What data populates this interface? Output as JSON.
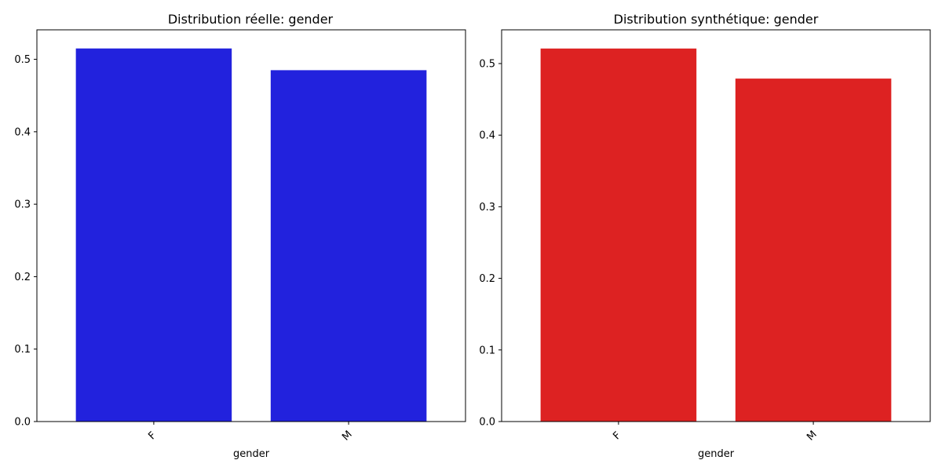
{
  "chart_data": [
    {
      "type": "bar",
      "title": "Distribution réelle: gender",
      "xlabel": "gender",
      "ylabel": "",
      "categories": [
        "F",
        "M"
      ],
      "values": [
        0.515,
        0.485
      ],
      "ylim": [
        0,
        0.5407
      ],
      "yticks": [
        "0.0",
        "0.1",
        "0.2",
        "0.3",
        "0.4",
        "0.5"
      ],
      "bar_color": "#2222dd",
      "grid": false
    },
    {
      "type": "bar",
      "title": "Distribution synthétique: gender",
      "xlabel": "gender",
      "ylabel": "",
      "categories": [
        "F",
        "M"
      ],
      "values": [
        0.521,
        0.479
      ],
      "ylim": [
        0,
        0.5471
      ],
      "yticks": [
        "0.0",
        "0.1",
        "0.2",
        "0.3",
        "0.4",
        "0.5"
      ],
      "bar_color": "#dd2222",
      "grid": false
    }
  ]
}
